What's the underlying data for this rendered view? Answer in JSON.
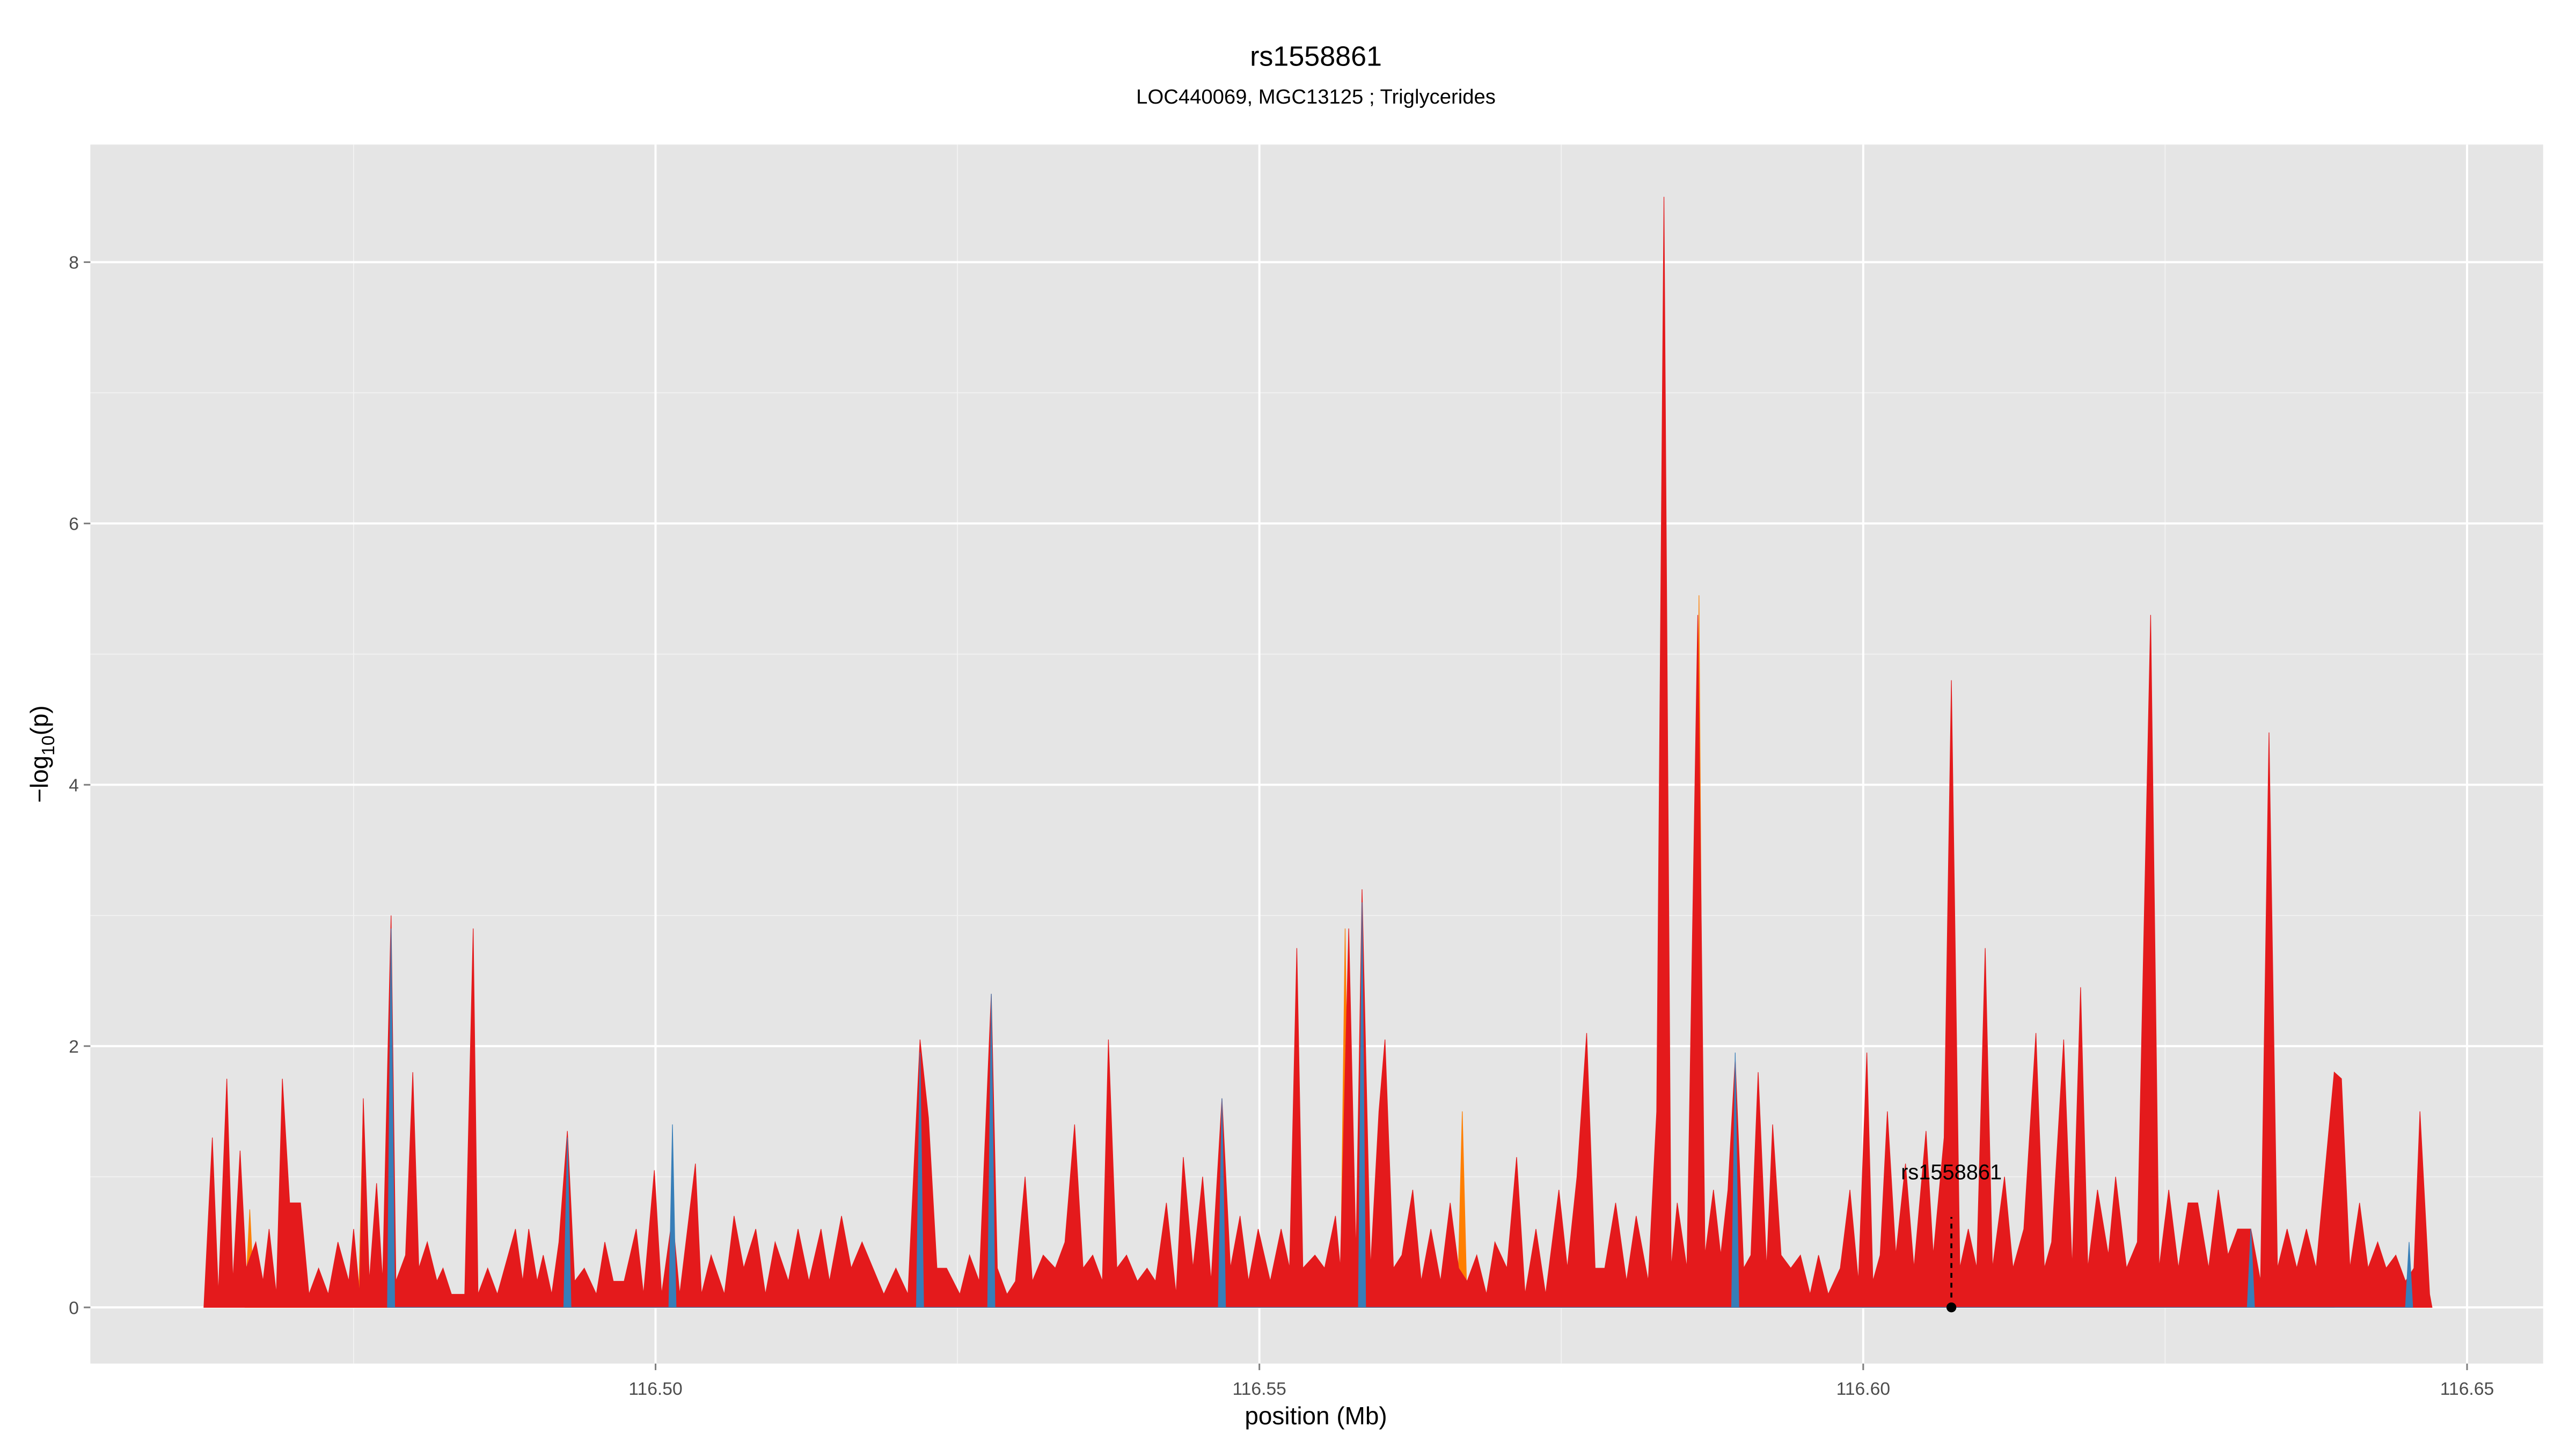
{
  "chart_data": {
    "type": "area",
    "title": "rs1558861",
    "subtitle": "LOC440069, MGC13125 ; Triglycerides",
    "x_label": "position (Mb)",
    "y_label": [
      "−log",
      "10",
      "(p)"
    ],
    "xlim": [
      116.4532,
      116.6563
    ],
    "ylim": [
      -0.43,
      8.9
    ],
    "xticks": [
      {
        "value": 116.5,
        "label": "116.50"
      },
      {
        "value": 116.55,
        "label": "116.55"
      },
      {
        "value": 116.6,
        "label": "116.60"
      },
      {
        "value": 116.65,
        "label": "116.65"
      }
    ],
    "yticks": [
      0,
      2,
      4,
      6,
      8
    ],
    "x_minor_grid": [
      116.475,
      116.525,
      116.575,
      116.625
    ],
    "y_minor_grid": [
      1,
      3,
      5,
      7
    ],
    "grid": true,
    "series": [
      {
        "color": "#ff7f00",
        "x": [
          116.466,
          116.4664,
          116.4668,
          116.4754,
          116.4758,
          116.4762,
          116.5567,
          116.5571,
          116.5575,
          116.5664,
          116.5668,
          116.5672,
          116.5829,
          116.5833,
          116.5837,
          116.586,
          116.5864,
          116.5868,
          116.6382,
          116.6386,
          116.639
        ],
        "values": [
          0,
          0.75,
          0,
          0,
          1.55,
          0,
          0,
          2.9,
          0,
          0,
          1.5,
          0,
          0,
          3.0,
          0,
          0,
          5.45,
          0,
          0,
          1.0,
          0
        ]
      },
      {
        "color": "#e41a1c",
        "x": [
          116.4626,
          116.4633,
          116.4638,
          116.4645,
          116.465,
          116.4656,
          116.4661,
          116.4669,
          116.4675,
          116.468,
          116.4686,
          116.4691,
          116.4697,
          116.4706,
          116.4713,
          116.4721,
          116.4729,
          116.4737,
          116.4746,
          116.475,
          116.4755,
          116.4758,
          116.4763,
          116.4769,
          116.4774,
          116.4781,
          116.4785,
          116.4793,
          116.4799,
          116.4804,
          116.4811,
          116.4819,
          116.4824,
          116.4831,
          116.4842,
          116.4849,
          116.4853,
          116.4861,
          116.4869,
          116.4878,
          116.4884,
          116.489,
          116.4895,
          116.4902,
          116.4907,
          116.4914,
          116.492,
          116.4927,
          116.4933,
          116.4941,
          116.4951,
          116.4958,
          116.4965,
          116.4974,
          116.4984,
          116.499,
          116.4999,
          116.5005,
          116.5014,
          116.502,
          116.5033,
          116.5038,
          116.5046,
          116.5057,
          116.5065,
          116.5073,
          116.5083,
          116.5091,
          116.5099,
          116.511,
          116.5118,
          116.5127,
          116.5137,
          116.5144,
          116.5154,
          116.5162,
          116.5171,
          116.518,
          116.5189,
          116.5199,
          116.5209,
          116.5219,
          116.5226,
          116.5233,
          116.5241,
          116.5252,
          116.526,
          116.5268,
          116.5278,
          116.5283,
          116.5291,
          116.5298,
          116.5306,
          116.5312,
          116.5321,
          116.5331,
          116.5339,
          116.5347,
          116.5354,
          116.5362,
          116.537,
          116.5375,
          116.5382,
          116.539,
          116.5399,
          116.5407,
          116.5414,
          116.5423,
          116.5431,
          116.5437,
          116.5445,
          116.5453,
          116.546,
          116.5469,
          116.5476,
          116.5484,
          116.5491,
          116.5499,
          116.5509,
          116.5518,
          116.5525,
          116.5531,
          116.5536,
          116.5546,
          116.5554,
          116.5563,
          116.5567,
          116.5574,
          116.558,
          116.5585,
          116.5592,
          116.5599,
          116.5604,
          116.5611,
          116.5618,
          116.5627,
          116.5634,
          116.5642,
          116.565,
          116.5658,
          116.5665,
          116.5672,
          116.568,
          116.5688,
          116.5695,
          116.5705,
          116.5713,
          116.572,
          116.5729,
          116.5737,
          116.5748,
          116.5755,
          116.5763,
          116.5771,
          116.5778,
          116.5786,
          116.5795,
          116.5804,
          116.5812,
          116.5822,
          116.5829,
          116.5835,
          116.5841,
          116.5846,
          116.5854,
          116.5863,
          116.5869,
          116.5876,
          116.5882,
          116.5888,
          116.5894,
          116.5901,
          116.5907,
          116.5913,
          116.592,
          116.5925,
          116.5932,
          116.594,
          116.5948,
          116.5956,
          116.5963,
          116.5971,
          116.5981,
          116.5989,
          116.5996,
          116.6003,
          116.6008,
          116.6014,
          116.602,
          116.6027,
          116.6035,
          116.6042,
          116.6052,
          116.6058,
          116.6067,
          116.6073,
          116.608,
          116.6087,
          116.6094,
          116.6101,
          116.6107,
          116.6117,
          116.6124,
          116.6133,
          116.6143,
          116.615,
          116.6156,
          116.6166,
          116.6173,
          116.618,
          116.6186,
          116.6194,
          116.6203,
          116.6209,
          116.6218,
          116.6227,
          116.6238,
          116.6245,
          116.6253,
          116.6261,
          116.6269,
          116.6277,
          116.6286,
          116.6294,
          116.6302,
          116.631,
          116.6321,
          116.6329,
          116.6336,
          116.6343,
          116.6351,
          116.6359,
          116.6367,
          116.6375,
          116.6382,
          116.639,
          116.6396,
          116.6403,
          116.6411,
          116.6418,
          116.6426,
          116.6433,
          116.6441,
          116.6449,
          116.6456,
          116.6461,
          116.6469,
          116.6471
        ],
        "values": [
          0,
          1.3,
          0.1,
          1.75,
          0.2,
          1.2,
          0.3,
          0.5,
          0.2,
          0.6,
          0.1,
          1.75,
          0.8,
          0.8,
          0.1,
          0.3,
          0.1,
          0.5,
          0.2,
          0.6,
          0.1,
          1.6,
          0.2,
          0.95,
          0.2,
          3.0,
          0.2,
          0.4,
          1.8,
          0.3,
          0.5,
          0.2,
          0.3,
          0.1,
          0.1,
          2.9,
          0.1,
          0.3,
          0.1,
          0.4,
          0.6,
          0.2,
          0.6,
          0.2,
          0.4,
          0.1,
          0.5,
          1.35,
          0.2,
          0.3,
          0.1,
          0.5,
          0.2,
          0.2,
          0.6,
          0.1,
          1.05,
          0.1,
          0.7,
          0.1,
          1.1,
          0.1,
          0.4,
          0.1,
          0.7,
          0.3,
          0.6,
          0.1,
          0.5,
          0.2,
          0.6,
          0.2,
          0.6,
          0.2,
          0.7,
          0.3,
          0.5,
          0.3,
          0.1,
          0.3,
          0.1,
          2.05,
          1.45,
          0.3,
          0.3,
          0.1,
          0.4,
          0.2,
          2.4,
          0.3,
          0.1,
          0.2,
          1.0,
          0.2,
          0.4,
          0.3,
          0.5,
          1.4,
          0.3,
          0.4,
          0.2,
          2.05,
          0.3,
          0.4,
          0.2,
          0.3,
          0.2,
          0.8,
          0.1,
          1.15,
          0.3,
          1.0,
          0.2,
          1.6,
          0.3,
          0.7,
          0.2,
          0.6,
          0.2,
          0.6,
          0.3,
          2.75,
          0.3,
          0.4,
          0.3,
          0.7,
          0.3,
          2.9,
          0.4,
          3.2,
          0.3,
          1.5,
          2.05,
          0.3,
          0.4,
          0.9,
          0.2,
          0.6,
          0.2,
          0.8,
          0.3,
          0.2,
          0.4,
          0.1,
          0.5,
          0.3,
          1.15,
          0.1,
          0.6,
          0.1,
          0.9,
          0.3,
          1.0,
          2.1,
          0.3,
          0.3,
          0.8,
          0.2,
          0.7,
          0.2,
          1.5,
          8.5,
          0.3,
          0.8,
          0.3,
          5.3,
          0.4,
          0.9,
          0.4,
          0.9,
          1.9,
          0.3,
          0.4,
          1.8,
          0.3,
          1.4,
          0.4,
          0.3,
          0.4,
          0.1,
          0.4,
          0.1,
          0.3,
          0.9,
          0.2,
          1.95,
          0.2,
          0.4,
          1.5,
          0.4,
          1.1,
          0.3,
          1.35,
          0.4,
          1.3,
          4.8,
          0.3,
          0.6,
          0.3,
          2.75,
          0.3,
          1.0,
          0.3,
          0.6,
          2.1,
          0.3,
          0.5,
          2.05,
          0.3,
          2.45,
          0.3,
          0.9,
          0.4,
          1.0,
          0.3,
          0.5,
          5.3,
          0.3,
          0.9,
          0.3,
          0.8,
          0.8,
          0.3,
          0.9,
          0.4,
          0.6,
          0.6,
          0.2,
          4.4,
          0.3,
          0.6,
          0.3,
          0.6,
          0.3,
          1.0,
          1.8,
          1.75,
          0.3,
          0.8,
          0.3,
          0.5,
          0.3,
          0.4,
          0.2,
          0.3,
          1.5,
          0.1,
          0
        ]
      },
      {
        "color": "#377eb8",
        "x": [
          116.4778,
          116.4781,
          116.4784,
          116.4924,
          116.4927,
          116.493,
          116.5011,
          116.5014,
          116.5017,
          116.5216,
          116.5219,
          116.5222,
          116.5275,
          116.5278,
          116.5281,
          116.5466,
          116.5469,
          116.5472,
          116.5582,
          116.5585,
          116.5588,
          116.5891,
          116.5894,
          116.5897,
          116.6318,
          116.6321,
          116.6324,
          116.6449,
          116.6452,
          116.6455
        ],
        "values": [
          0,
          2.9,
          0,
          0,
          1.3,
          0,
          0,
          1.4,
          0,
          0,
          1.95,
          0,
          0,
          2.4,
          0,
          0,
          1.6,
          0,
          0,
          3.1,
          0,
          0,
          1.95,
          0,
          0,
          0.6,
          0,
          0,
          0.5,
          0
        ]
      }
    ],
    "annotation": {
      "text": "rs1558861",
      "x": 116.6073,
      "y": 0
    }
  }
}
